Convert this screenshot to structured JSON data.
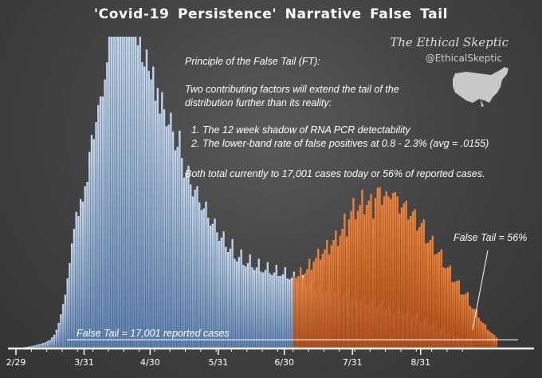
{
  "chart_data": {
    "type": "bar",
    "title": "'Covid-19 Persistence' Narrative False Tail",
    "x_tick_labels": [
      "2/29",
      "3/31",
      "4/30",
      "5/31",
      "6/30",
      "7/31",
      "8/31"
    ],
    "ylim": [
      0,
      36500
    ],
    "grid": false,
    "legend": "none",
    "series": [
      {
        "color": "#a9c4e6",
        "values": [
          30,
          50,
          80,
          110,
          160,
          200,
          260,
          300,
          360,
          420,
          500,
          560,
          640,
          720,
          860,
          1000,
          1300,
          1600,
          2200,
          3000,
          4000,
          5200,
          6300,
          8200,
          10000,
          12300,
          14000,
          16000,
          15500,
          17500,
          17200,
          19000,
          19500,
          23000,
          25000,
          24500,
          26500,
          28500,
          29500,
          29500,
          31500,
          33500,
          36500,
          36500,
          36500,
          36500,
          36500,
          36500,
          36500,
          36500,
          36500,
          36500,
          36500,
          36500,
          36500,
          35500,
          36500,
          33500,
          33000,
          35000,
          32500,
          31500,
          33000,
          29000,
          30500,
          27500,
          30000,
          28000,
          26000,
          26200,
          27600,
          25400,
          23200,
          23600,
          25500,
          22300,
          20000,
          20600,
          21400,
          19200,
          17800,
          18600,
          19000,
          17100,
          16200,
          16400,
          17200,
          15300,
          14400,
          14600,
          15200,
          13600,
          12600,
          13000,
          13700,
          11900,
          11300,
          11700,
          12800,
          10500,
          10200,
          10700,
          11600,
          9800,
          9600,
          10000,
          11000,
          9500,
          9200,
          9500,
          10500,
          9000,
          8900,
          9200,
          10100,
          8800,
          8600,
          8900,
          9800,
          8500,
          8500,
          8700,
          9500,
          8200,
          8100,
          8300,
          9000,
          7700,
          7700,
          7900,
          8600,
          7300,
          7300,
          7600,
          8300,
          6900,
          6900,
          7200,
          7700,
          6500,
          6600,
          6900,
          7400,
          6200,
          6400,
          6700,
          7200,
          6000,
          6100,
          6400,
          6900,
          5700,
          5800,
          6100,
          6600,
          5400,
          5500,
          5800,
          6300,
          5100,
          5200,
          5500,
          6000,
          4800,
          4900,
          5200,
          5700,
          4400,
          4600,
          4900,
          5400,
          4100,
          4300,
          4500,
          5000,
          3800,
          4000,
          4200,
          4600,
          3400,
          3600,
          3800,
          4200,
          3000,
          3100,
          3300,
          3600,
          2600,
          2700,
          2900,
          3200,
          2100,
          2200,
          2400,
          2600,
          1800,
          1700,
          1800,
          1900,
          1400,
          1300,
          1300,
          1400,
          1200,
          1200,
          1300,
          1500,
          1200
        ]
      },
      {
        "color": "#d9621a",
        "values": [
          0,
          0,
          0,
          0,
          0,
          0,
          0,
          0,
          0,
          0,
          0,
          0,
          0,
          0,
          0,
          0,
          0,
          0,
          0,
          0,
          0,
          0,
          0,
          0,
          0,
          0,
          0,
          0,
          0,
          0,
          0,
          0,
          0,
          0,
          0,
          0,
          0,
          0,
          0,
          0,
          0,
          0,
          0,
          0,
          0,
          0,
          0,
          0,
          0,
          0,
          0,
          0,
          0,
          0,
          0,
          0,
          0,
          0,
          0,
          0,
          0,
          0,
          0,
          0,
          0,
          0,
          0,
          0,
          0,
          0,
          0,
          0,
          0,
          0,
          0,
          0,
          0,
          0,
          0,
          0,
          0,
          0,
          0,
          0,
          0,
          0,
          0,
          0,
          0,
          0,
          0,
          0,
          0,
          0,
          0,
          0,
          0,
          0,
          0,
          0,
          0,
          0,
          0,
          0,
          0,
          0,
          0,
          0,
          0,
          0,
          0,
          0,
          0,
          0,
          0,
          0,
          0,
          0,
          0,
          0,
          0,
          0,
          0,
          0,
          0,
          0,
          8500,
          8300,
          8500,
          9500,
          8200,
          8800,
          9300,
          10500,
          9200,
          10200,
          10600,
          11700,
          10400,
          11100,
          11600,
          12700,
          11000,
          12100,
          12700,
          13800,
          12000,
          13200,
          14000,
          15800,
          13100,
          15100,
          16100,
          17600,
          15100,
          16100,
          16800,
          18600,
          15700,
          16800,
          17300,
          18100,
          15200,
          17600,
          18800,
          18900,
          16800,
          17800,
          18400,
          17800,
          17500,
          18200,
          18300,
          17800,
          15800,
          16500,
          17000,
          17300,
          15100,
          15500,
          16000,
          16300,
          13800,
          14200,
          14700,
          15100,
          12300,
          12400,
          12700,
          13200,
          11000,
          11100,
          11300,
          11600,
          9500,
          9400,
          9500,
          9700,
          7800,
          7800,
          7900,
          8000,
          6300,
          6300,
          6400,
          6600,
          5000,
          4700,
          4600,
          4600,
          3600,
          3200,
          3000,
          2800,
          2200,
          2000,
          1800,
          1600,
          1300
        ]
      }
    ],
    "annotations": {
      "principle_title": "Principle of the False Tail (FT):",
      "intro": "Two contributing factors will extend the tail of the distribution further than its reality:",
      "factors": [
        "1.  The 12  week shadow of RNA PCR detectability",
        "2.  The lower-band rate of false positives at 0.8 - 2.3% (avg = .0155)"
      ],
      "summary": "Both total currently to 17,001 cases today or 56% of reported cases.",
      "false_tail_pct": "False Tail = 56%",
      "false_tail_cases": "False Tail = 17,001 reported cases"
    }
  },
  "brand": {
    "name": "The Ethical Skeptic",
    "handle": "@EthicalSkeptic"
  }
}
